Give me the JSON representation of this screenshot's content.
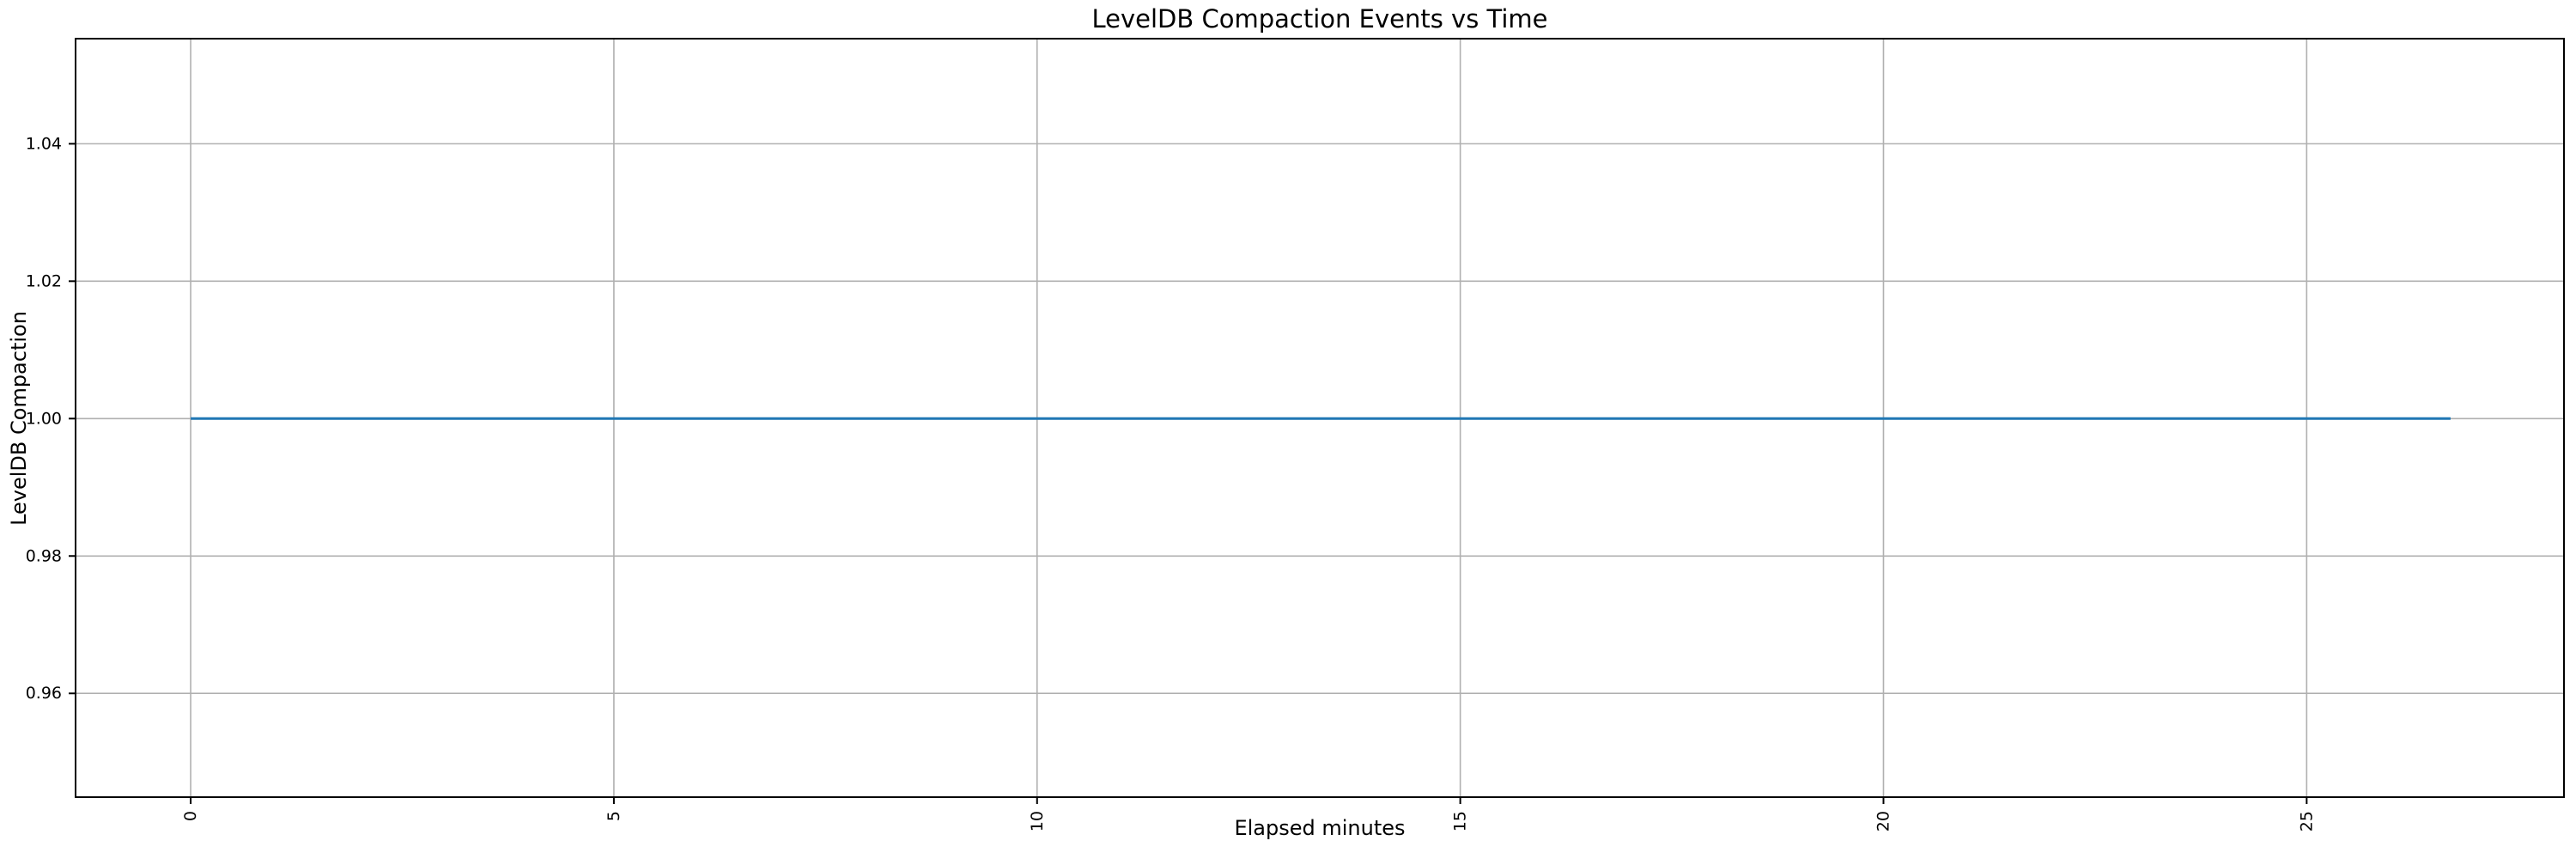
{
  "figure": {
    "background_color": "#ffffff"
  },
  "chart_data": {
    "type": "line",
    "title": "LevelDB Compaction Events vs Time",
    "xlabel": "Elapsed minutes",
    "ylabel": "LevelDB Compaction",
    "x_ticks": [
      0,
      5,
      10,
      15,
      20,
      25
    ],
    "x_tick_labels": [
      "0",
      "5",
      "10",
      "15",
      "20",
      "25"
    ],
    "x_tick_label_rotation": 90,
    "y_ticks": [
      0.96,
      0.98,
      1.0,
      1.02,
      1.04
    ],
    "y_tick_labels": [
      "0.96",
      "0.98",
      "1.00",
      "1.02",
      "1.04"
    ],
    "xlim": [
      -1.36,
      28.04
    ],
    "ylim": [
      0.9449,
      1.0553
    ],
    "grid": true,
    "legend_position": "none",
    "series": [
      {
        "name": "LevelDB Compaction",
        "color": "#1f77b4",
        "x": [
          0,
          26.7
        ],
        "y": [
          1.0,
          1.0
        ]
      }
    ],
    "colors": {
      "line": "#1f77b4",
      "grid": "#b0b0b0",
      "spine": "#000000",
      "tick": "#000000",
      "text": "#000000",
      "plot_background": "#ffffff"
    }
  }
}
